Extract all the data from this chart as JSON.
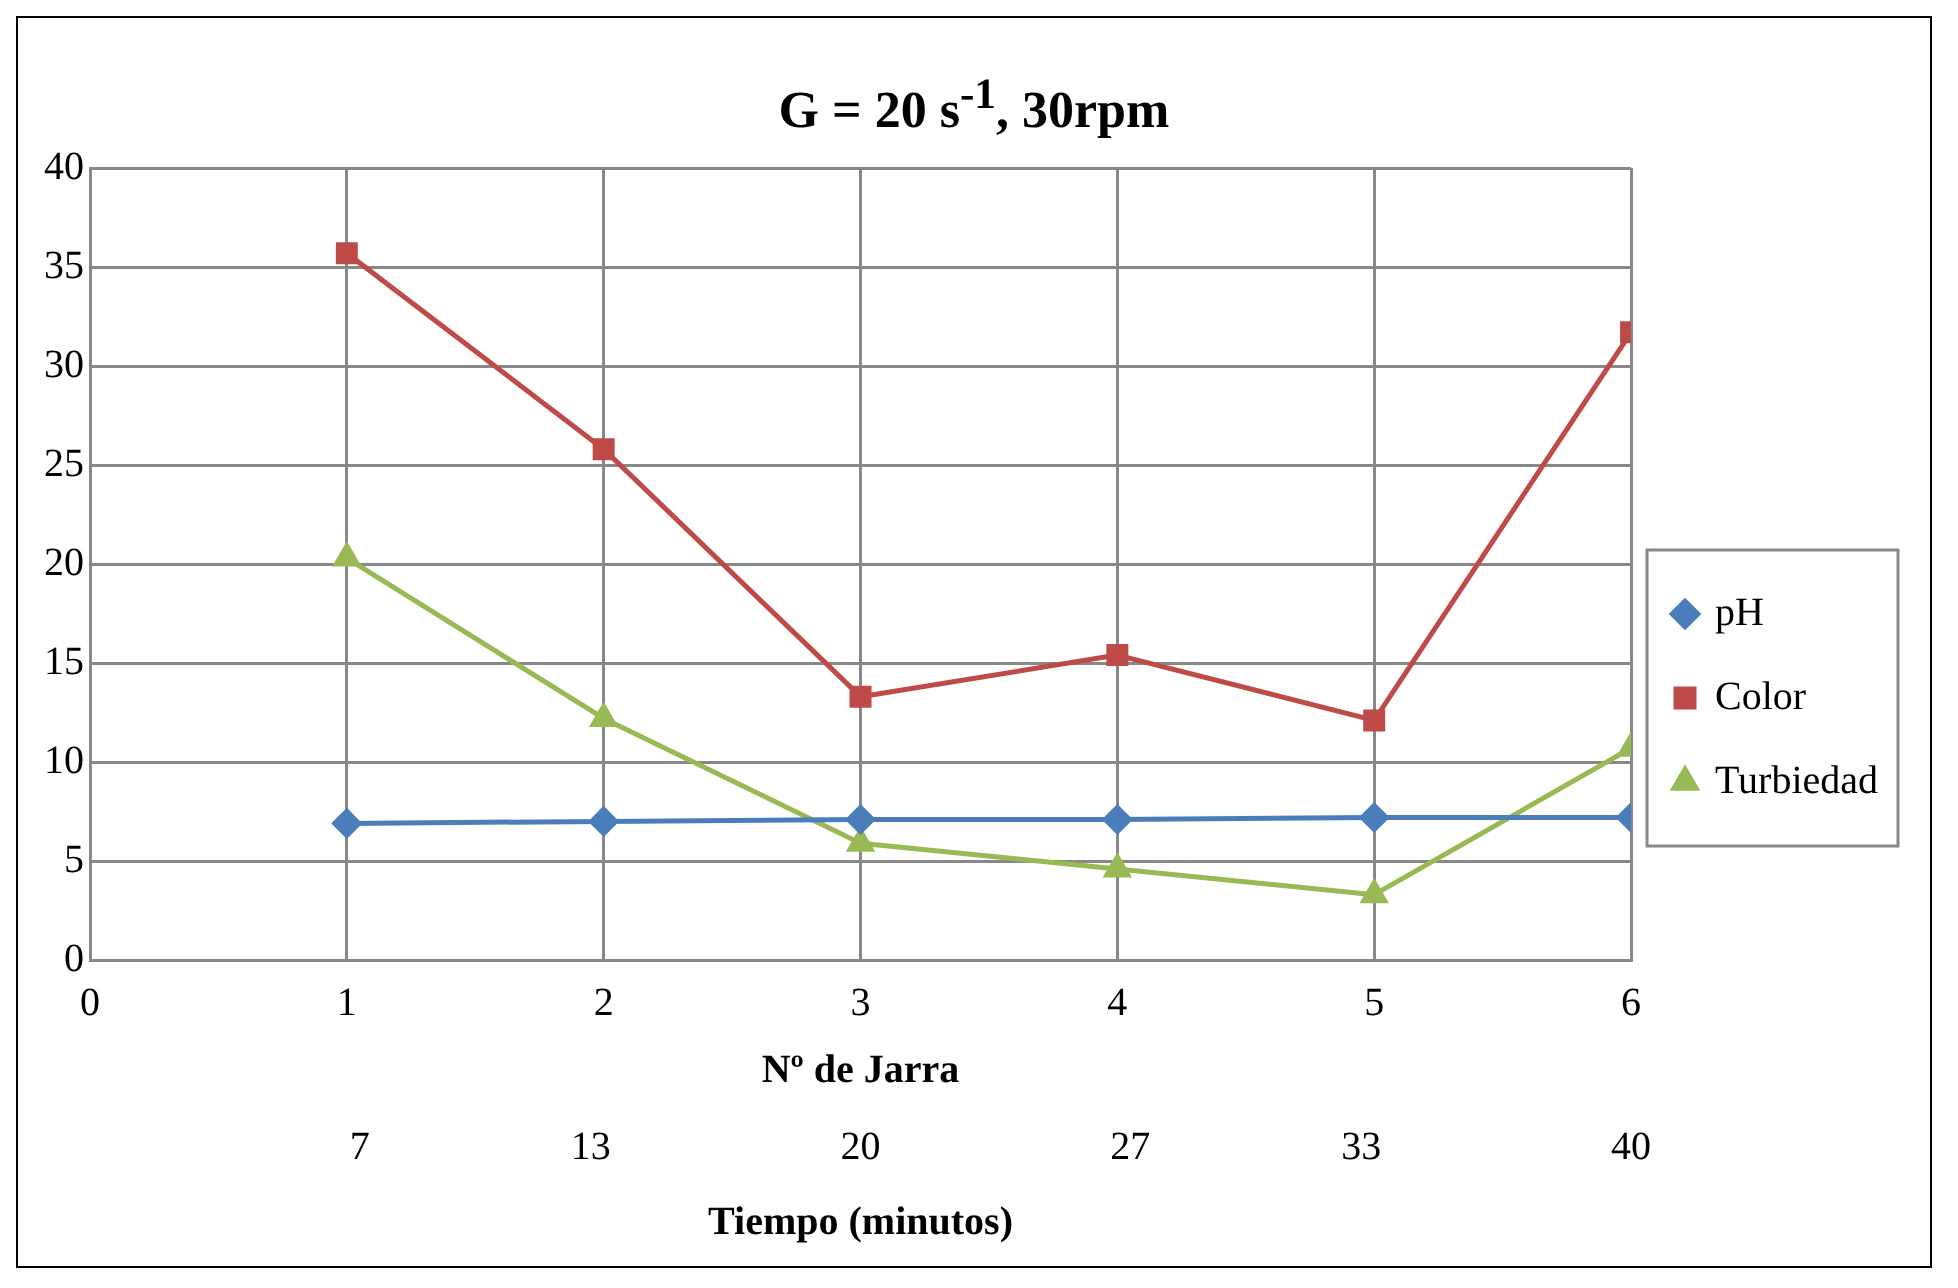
{
  "chart_data": {
    "type": "line",
    "title": "G = 20 s$^{-1}$, 30rpm",
    "xlabel": "Nº de Jarra",
    "x2label": "Tiempo (minutos)",
    "x": [
      1,
      2,
      3,
      4,
      5,
      6
    ],
    "series": [
      {
        "name": "pH",
        "color": "#4a7ebb",
        "marker": "diamond",
        "values": [
          6.9,
          7.0,
          7.1,
          7.1,
          7.2,
          7.2
        ]
      },
      {
        "name": "Color",
        "color": "#be4b48",
        "marker": "square",
        "values": [
          35.7,
          25.8,
          13.3,
          15.4,
          12.1,
          31.7
        ]
      },
      {
        "name": "Turbiedad",
        "color": "#98b954",
        "marker": "triangle",
        "values": [
          20.3,
          12.2,
          5.9,
          4.6,
          3.3,
          10.7
        ]
      }
    ],
    "xlim": [
      0,
      6
    ],
    "xticks": [
      0,
      1,
      2,
      3,
      4,
      5,
      6
    ],
    "x2lim": [
      0,
      40
    ],
    "x2ticks": [
      7,
      13,
      20,
      27,
      33,
      40
    ],
    "ylim": [
      0,
      40
    ],
    "yticks": [
      0,
      5,
      10,
      15,
      20,
      25,
      30,
      35,
      40
    ],
    "grid": true,
    "legend": "right",
    "line_style": "solid"
  }
}
